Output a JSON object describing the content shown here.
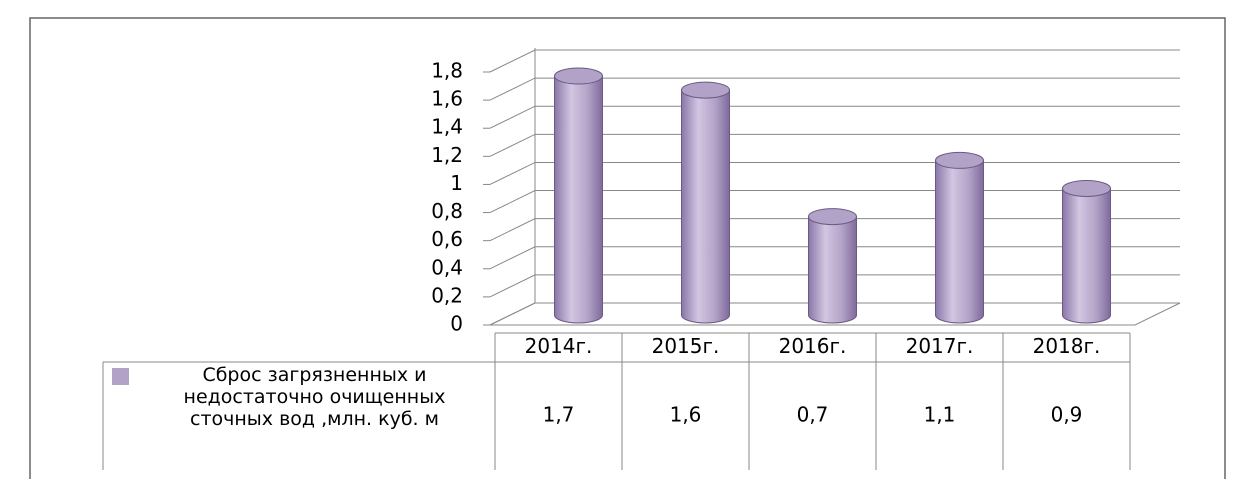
{
  "chart_data": {
    "type": "bar3d",
    "categories": [
      "2014г.",
      "2015г.",
      "2016г.",
      "2017г.",
      "2018г."
    ],
    "series": [
      {
        "name": "Сброс загрязненных и недостаточно очищенных сточных вод ,млн. куб. м",
        "color": "#b3a2c7",
        "values": [
          1.7,
          1.6,
          0.7,
          1.1,
          0.9
        ],
        "value_labels": [
          "1,7",
          "1,6",
          "0,7",
          "1,1",
          "0,9"
        ]
      }
    ],
    "ylim": [
      0,
      1.8
    ],
    "yticks": [
      0,
      {
        "value": 0.2,
        "label": "0,2"
      },
      {
        "value": 0.4,
        "label": "0,4"
      },
      {
        "value": 0.6,
        "label": "0,6"
      },
      {
        "value": 0.8,
        "label": "0,8"
      },
      1,
      {
        "value": 1.2,
        "label": "1,2"
      },
      {
        "value": 1.4,
        "label": "1,4"
      },
      {
        "value": 1.6,
        "label": "1,6"
      },
      {
        "value": 1.8,
        "label": "1,8"
      }
    ],
    "grid": true
  }
}
